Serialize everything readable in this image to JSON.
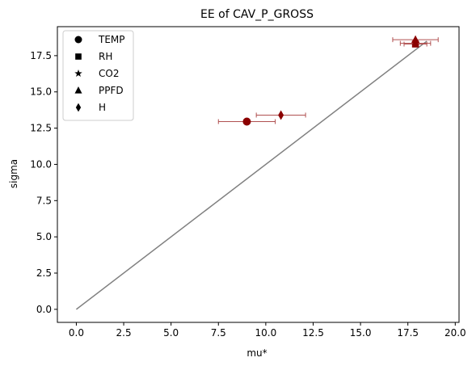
{
  "chart_data": {
    "type": "scatter",
    "title": "EE of CAV_P_GROSS",
    "xlabel": "mu*",
    "ylabel": "sigma",
    "xlim": [
      -1.0,
      20.2
    ],
    "ylim": [
      -0.9,
      19.5
    ],
    "xticks": [
      0.0,
      2.5,
      5.0,
      7.5,
      10.0,
      12.5,
      15.0,
      17.5,
      20.0
    ],
    "xtick_labels": [
      "0.0",
      "2.5",
      "5.0",
      "7.5",
      "10.0",
      "12.5",
      "15.0",
      "17.5",
      "20.0"
    ],
    "yticks": [
      0.0,
      2.5,
      5.0,
      7.5,
      10.0,
      12.5,
      15.0,
      17.5
    ],
    "ytick_labels": [
      "0.0",
      "2.5",
      "5.0",
      "7.5",
      "10.0",
      "12.5",
      "15.0",
      "17.5"
    ],
    "grid": false,
    "legend_position": "top-left",
    "marker_color": "#8b0000",
    "errorbar_color": "#b05050",
    "reference_line": {
      "x": [
        0.0,
        18.5
      ],
      "y": [
        0.0,
        18.5
      ],
      "color": "#808080"
    },
    "series": [
      {
        "name": "TEMP",
        "marker": "circle",
        "x": 9.0,
        "y": 12.95,
        "xerr": 1.5
      },
      {
        "name": "RH",
        "marker": "square",
        "x": 17.9,
        "y": 18.3,
        "xerr": 0.6
      },
      {
        "name": "CO2",
        "marker": "star",
        "x": 17.9,
        "y": 18.35,
        "xerr": 0.8
      },
      {
        "name": "PPFD",
        "marker": "triangle",
        "x": 17.9,
        "y": 18.6,
        "xerr": 1.2
      },
      {
        "name": "H",
        "marker": "diamond",
        "x": 10.8,
        "y": 13.4,
        "xerr": 1.3
      }
    ]
  }
}
